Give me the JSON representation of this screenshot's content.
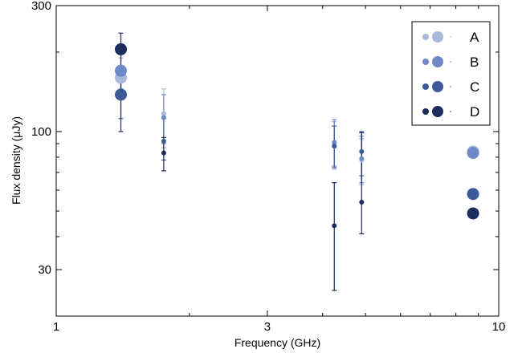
{
  "chart_data": {
    "type": "scatter",
    "xlabel": "Frequency (GHz)",
    "ylabel": "Flux density (μJy)",
    "x_scale": "log",
    "y_scale": "log",
    "xlim": [
      1,
      10
    ],
    "ylim": [
      20,
      300
    ],
    "x_ticks": [
      {
        "value": 1,
        "label": "1"
      },
      {
        "value": 3,
        "label": "3"
      },
      {
        "value": 10,
        "label": "10"
      }
    ],
    "y_ticks": [
      {
        "value": 30,
        "label": "30"
      },
      {
        "value": 100,
        "label": "100"
      },
      {
        "value": 300,
        "label": "300"
      }
    ],
    "grid": false,
    "legend_position": "top-right",
    "series": [
      {
        "name": "A",
        "color": "#aab8dc",
        "points": [
          {
            "x": 1.4,
            "y": 160,
            "lo": 135,
            "hi": 190,
            "size": "large"
          },
          {
            "x": 1.75,
            "y": 117,
            "lo": 87,
            "hi": 145,
            "size": "small"
          },
          {
            "x": 4.25,
            "y": 89,
            "lo": 72,
            "hi": 109,
            "size": "small"
          },
          {
            "x": 4.9,
            "y": 78,
            "lo": 63,
            "hi": 94,
            "size": "small"
          },
          {
            "x": 8.75,
            "y": 84,
            "lo": 82,
            "hi": 87,
            "size": "large"
          }
        ]
      },
      {
        "name": "B",
        "color": "#6e88c8",
        "points": [
          {
            "x": 1.4,
            "y": 170,
            "lo": 145,
            "hi": 200,
            "size": "large"
          },
          {
            "x": 1.75,
            "y": 113,
            "lo": 90,
            "hi": 138,
            "size": "small"
          },
          {
            "x": 4.25,
            "y": 91,
            "lo": 74,
            "hi": 111,
            "size": "small"
          },
          {
            "x": 4.9,
            "y": 79,
            "lo": 64,
            "hi": 96,
            "size": "small"
          },
          {
            "x": 8.75,
            "y": 83,
            "lo": 81,
            "hi": 86,
            "size": "large"
          }
        ]
      },
      {
        "name": "C",
        "color": "#3c5a98",
        "points": [
          {
            "x": 1.4,
            "y": 138,
            "lo": 112,
            "hi": 165,
            "size": "large"
          },
          {
            "x": 1.75,
            "y": 92,
            "lo": 78,
            "hi": 112,
            "size": "small"
          },
          {
            "x": 4.25,
            "y": 88,
            "lo": 73,
            "hi": 105,
            "size": "small"
          },
          {
            "x": 4.9,
            "y": 84,
            "lo": 68,
            "hi": 100,
            "size": "small"
          },
          {
            "x": 8.75,
            "y": 58,
            "lo": 56,
            "hi": 60,
            "size": "large"
          }
        ]
      },
      {
        "name": "D",
        "color": "#1a2d5e",
        "points": [
          {
            "x": 1.4,
            "y": 205,
            "lo": 100,
            "hi": 236,
            "size": "large"
          },
          {
            "x": 1.75,
            "y": 83,
            "lo": 71,
            "hi": 95,
            "size": "small"
          },
          {
            "x": 4.25,
            "y": 44,
            "lo": 25,
            "hi": 64,
            "size": "small"
          },
          {
            "x": 4.9,
            "y": 54,
            "lo": 41,
            "hi": 99,
            "size": "small"
          },
          {
            "x": 8.75,
            "y": 49,
            "lo": 47,
            "hi": 51,
            "size": "large"
          }
        ]
      }
    ]
  }
}
